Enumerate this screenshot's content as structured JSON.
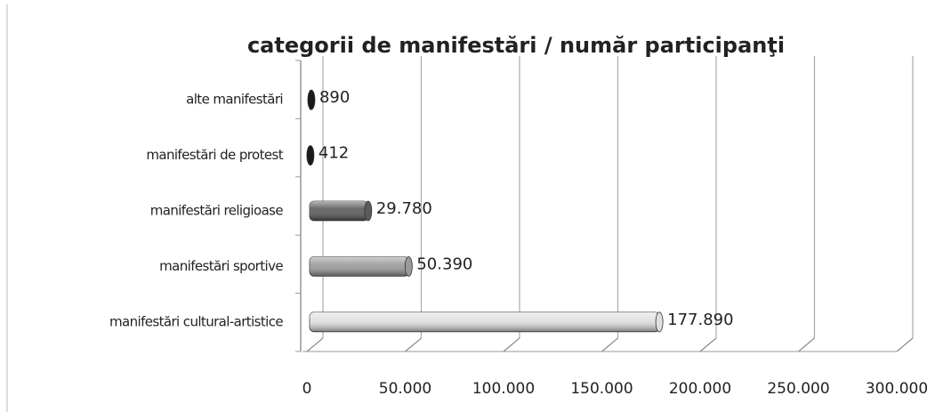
{
  "chart_data": {
    "type": "bar",
    "orientation": "horizontal",
    "title": "categorii de manifestări / număr participanţi",
    "categories": [
      "alte manifestări",
      "manifestări de protest",
      "manifestări religioase",
      "manifestări sportive",
      "manifestări cultural-artistice"
    ],
    "values": [
      890,
      412,
      29780,
      50390,
      177890
    ],
    "value_labels": [
      "890",
      "412",
      "29.780",
      "50.390",
      "177.890"
    ],
    "colors": [
      "#1a1a1a",
      "#1a1a1a",
      "#5a5a5a",
      "#9a9a9a",
      "#e0e0e0"
    ],
    "xlim": [
      0,
      300000
    ],
    "xticks": [
      0,
      {
        "value": 50000,
        "label": "50.000"
      },
      {
        "value": 100000,
        "label": "100.000"
      },
      {
        "value": 150000,
        "label": "150.000"
      },
      {
        "value": 200000,
        "label": "200.000"
      },
      {
        "value": 250000,
        "label": "250.000"
      },
      {
        "value": 300000,
        "label": "300.000"
      }
    ],
    "grid": true
  }
}
